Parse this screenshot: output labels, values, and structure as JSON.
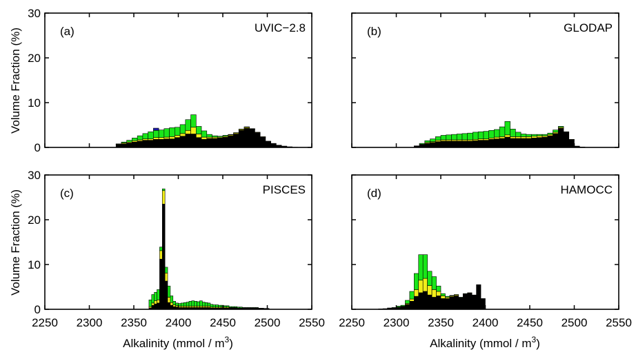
{
  "figure": {
    "ylabel": "Volume Fraction  (%)",
    "xlabel_main": "Alkalinity (mmol / m",
    "xlabel_sup": "3",
    "xlabel_end": ")"
  },
  "colors": {
    "green": "#19e619",
    "yellow": "#f2ee1a",
    "blue": "#1a1aa8",
    "black": "#000000"
  },
  "chart_data": [
    {
      "type": "bar",
      "id": "a",
      "panel_label": "(a)",
      "title": "UVIC−2.8",
      "xlim": [
        2250,
        2550
      ],
      "ylim": [
        0,
        30
      ],
      "xticks": [
        2250,
        2300,
        2350,
        2400,
        2450,
        2500,
        2550
      ],
      "yticks": [
        0,
        10,
        20,
        30
      ],
      "bin_width": 6,
      "bins": [
        [
          2330,
          0.6,
          0.1,
          0.1,
          0
        ],
        [
          2336,
          0.8,
          0.2,
          0.2,
          0
        ],
        [
          2342,
          1.0,
          0.2,
          0.4,
          0
        ],
        [
          2348,
          1.2,
          0.3,
          0.6,
          0
        ],
        [
          2354,
          1.4,
          0.3,
          0.9,
          0
        ],
        [
          2360,
          1.6,
          0.3,
          1.2,
          0
        ],
        [
          2366,
          1.6,
          0.3,
          1.6,
          0
        ],
        [
          2372,
          1.8,
          0.4,
          1.6,
          0.5
        ],
        [
          2378,
          1.8,
          0.4,
          1.7,
          0
        ],
        [
          2384,
          1.9,
          0.4,
          1.9,
          0
        ],
        [
          2390,
          1.9,
          0.5,
          2.0,
          0
        ],
        [
          2396,
          2.2,
          0.5,
          1.8,
          0
        ],
        [
          2402,
          2.5,
          0.6,
          2.0,
          0
        ],
        [
          2408,
          3.0,
          0.8,
          2.4,
          0
        ],
        [
          2414,
          3.0,
          1.5,
          2.8,
          0
        ],
        [
          2420,
          2.2,
          0.8,
          1.7,
          0
        ],
        [
          2426,
          1.8,
          0.5,
          1.4,
          0
        ],
        [
          2432,
          2.0,
          0.3,
          0.6,
          0
        ],
        [
          2438,
          2.0,
          0.3,
          0.3,
          0
        ],
        [
          2444,
          2.1,
          0.2,
          0.2,
          0
        ],
        [
          2450,
          2.3,
          0.2,
          0.2,
          0
        ],
        [
          2456,
          2.6,
          0.2,
          0.1,
          0
        ],
        [
          2462,
          3.0,
          0.2,
          0.1,
          0
        ],
        [
          2468,
          3.8,
          0.2,
          0.1,
          0
        ],
        [
          2474,
          4.3,
          0.2,
          0.1,
          0
        ],
        [
          2480,
          4.0,
          0.1,
          0.1,
          0
        ],
        [
          2486,
          3.3,
          0.1,
          0,
          0
        ],
        [
          2492,
          2.3,
          0.1,
          0,
          0
        ],
        [
          2498,
          1.4,
          0,
          0,
          0
        ],
        [
          2504,
          0.9,
          0,
          0,
          0
        ],
        [
          2510,
          0.5,
          0,
          0,
          0
        ],
        [
          2516,
          0.3,
          0,
          0,
          0
        ],
        [
          2522,
          0.15,
          0,
          0,
          0
        ],
        [
          2528,
          0.05,
          0,
          0,
          0
        ]
      ]
    },
    {
      "type": "bar",
      "id": "b",
      "panel_label": "(b)",
      "title": "GLODAP",
      "xlim": [
        2250,
        2550
      ],
      "ylim": [
        0,
        30
      ],
      "xticks": [
        2250,
        2300,
        2350,
        2400,
        2450,
        2500,
        2550
      ],
      "yticks": [
        0,
        10,
        20,
        30
      ],
      "bin_width": 6,
      "bins": [
        [
          2320,
          0.3,
          0,
          0.05,
          0
        ],
        [
          2326,
          0.6,
          0.1,
          0.2,
          0
        ],
        [
          2332,
          0.9,
          0.2,
          0.4,
          0
        ],
        [
          2338,
          1.1,
          0.2,
          0.6,
          0
        ],
        [
          2344,
          1.3,
          0.3,
          0.8,
          0
        ],
        [
          2350,
          1.4,
          0.3,
          1.0,
          0
        ],
        [
          2356,
          1.4,
          0.3,
          1.1,
          0
        ],
        [
          2362,
          1.4,
          0.3,
          1.2,
          0
        ],
        [
          2368,
          1.4,
          0.3,
          1.3,
          0
        ],
        [
          2374,
          1.4,
          0.3,
          1.4,
          0
        ],
        [
          2380,
          1.4,
          0.3,
          1.5,
          0
        ],
        [
          2386,
          1.5,
          0.3,
          1.6,
          0
        ],
        [
          2392,
          1.6,
          0.3,
          1.6,
          0
        ],
        [
          2398,
          1.6,
          0.3,
          1.7,
          0
        ],
        [
          2404,
          1.8,
          0.3,
          1.7,
          0
        ],
        [
          2410,
          1.9,
          0.4,
          1.7,
          0
        ],
        [
          2416,
          2.0,
          0.4,
          2.2,
          0
        ],
        [
          2422,
          2.3,
          0.5,
          3.0,
          0
        ],
        [
          2428,
          2.0,
          0.4,
          1.7,
          0
        ],
        [
          2434,
          2.0,
          0.4,
          1.0,
          0
        ],
        [
          2440,
          2.0,
          0.4,
          0.6,
          0
        ],
        [
          2446,
          2.0,
          0.4,
          0.5,
          0
        ],
        [
          2452,
          2.1,
          0.4,
          0.4,
          0
        ],
        [
          2458,
          2.2,
          0.4,
          0.3,
          0
        ],
        [
          2464,
          2.3,
          0.3,
          0.3,
          0
        ],
        [
          2470,
          2.6,
          0.3,
          0.3,
          0
        ],
        [
          2476,
          3.1,
          0.3,
          0.5,
          0
        ],
        [
          2482,
          4.3,
          0.2,
          0.2,
          0
        ],
        [
          2488,
          3.3,
          0.1,
          0.1,
          0
        ],
        [
          2494,
          1.7,
          0.1,
          0,
          0
        ],
        [
          2500,
          0.3,
          0,
          0,
          0
        ],
        [
          2506,
          0.1,
          0,
          0,
          0
        ]
      ]
    },
    {
      "type": "bar",
      "id": "c",
      "panel_label": "(c)",
      "title": "PISCES",
      "xlim": [
        2250,
        2550
      ],
      "ylim": [
        0,
        30
      ],
      "xticks": [
        2250,
        2300,
        2350,
        2400,
        2450,
        2500,
        2550
      ],
      "yticks": [
        0,
        10,
        20,
        30
      ],
      "bin_width": 3,
      "bins": [
        [
          2367,
          0.3,
          0.3,
          1.5,
          0
        ],
        [
          2370,
          0.9,
          0.5,
          1.9,
          0
        ],
        [
          2373,
          1.2,
          0.7,
          1.9,
          0
        ],
        [
          2376,
          1.4,
          0.7,
          2.3,
          0
        ],
        [
          2379,
          11.2,
          1.9,
          0.8,
          0
        ],
        [
          2382,
          23.5,
          3.0,
          0.4,
          0
        ],
        [
          2385,
          6.3,
          1.8,
          1.3,
          0
        ],
        [
          2388,
          1.5,
          1.2,
          2.5,
          0
        ],
        [
          2391,
          0.9,
          0.6,
          1.5,
          0
        ],
        [
          2394,
          0.6,
          0.4,
          0.8,
          0
        ],
        [
          2397,
          0.5,
          0.3,
          0.6,
          0
        ],
        [
          2400,
          0.4,
          0.3,
          0.6,
          0
        ],
        [
          2403,
          0.4,
          0.3,
          0.7,
          0
        ],
        [
          2406,
          0.4,
          0.3,
          0.8,
          0
        ],
        [
          2409,
          0.4,
          0.3,
          0.9,
          0
        ],
        [
          2412,
          0.4,
          0.3,
          1.1,
          0
        ],
        [
          2415,
          0.4,
          0.3,
          1.2,
          0
        ],
        [
          2418,
          0.4,
          0.3,
          1.1,
          0
        ],
        [
          2421,
          0.4,
          0.3,
          1.0,
          0
        ],
        [
          2424,
          0.4,
          0.3,
          1.2,
          0
        ],
        [
          2427,
          0.4,
          0.3,
          0.9,
          0
        ],
        [
          2430,
          0.4,
          0.3,
          0.8,
          0
        ],
        [
          2433,
          0.4,
          0.3,
          0.7,
          0
        ],
        [
          2436,
          0.3,
          0.2,
          0.6,
          0
        ],
        [
          2439,
          0.3,
          0.2,
          0.5,
          0
        ],
        [
          2442,
          0.3,
          0.2,
          0.5,
          0
        ],
        [
          2445,
          0.3,
          0.2,
          0.4,
          0
        ],
        [
          2448,
          0.3,
          0.2,
          0.4,
          0
        ],
        [
          2451,
          0.3,
          0.2,
          0.3,
          0
        ],
        [
          2454,
          0.3,
          0.2,
          0.3,
          0
        ],
        [
          2457,
          0.3,
          0.1,
          0.2,
          0
        ],
        [
          2460,
          0.3,
          0.1,
          0.2,
          0
        ],
        [
          2463,
          0.3,
          0.1,
          0.2,
          0
        ],
        [
          2466,
          0.2,
          0.1,
          0.2,
          0
        ],
        [
          2469,
          0.2,
          0.1,
          0.2,
          0
        ],
        [
          2472,
          0.2,
          0.1,
          0.1,
          0
        ],
        [
          2475,
          0.2,
          0.1,
          0.1,
          0
        ],
        [
          2478,
          0.2,
          0.1,
          0.1,
          0
        ],
        [
          2481,
          0.2,
          0.1,
          0.1,
          0
        ],
        [
          2484,
          0.2,
          0.1,
          0.1,
          0
        ],
        [
          2487,
          0.2,
          0.1,
          0.1,
          0
        ],
        [
          2490,
          0.15,
          0.05,
          0.05,
          0
        ],
        [
          2493,
          0.15,
          0.05,
          0.05,
          0
        ],
        [
          2496,
          0.1,
          0.05,
          0.05,
          0
        ],
        [
          2499,
          0.1,
          0.05,
          0.05,
          0
        ]
      ]
    },
    {
      "type": "bar",
      "id": "d",
      "panel_label": "(d)",
      "title": "HAMOCC",
      "xlim": [
        2250,
        2550
      ],
      "ylim": [
        0,
        30
      ],
      "xticks": [
        2250,
        2300,
        2350,
        2400,
        2450,
        2500,
        2550
      ],
      "yticks": [
        0,
        10,
        20,
        30
      ],
      "bin_width": 5,
      "bins": [
        [
          2280,
          0.1,
          0,
          0,
          0
        ],
        [
          2285,
          0.1,
          0,
          0.05,
          0
        ],
        [
          2290,
          0.2,
          0,
          0.1,
          0
        ],
        [
          2295,
          0.3,
          0,
          0.1,
          0
        ],
        [
          2300,
          0.4,
          0.1,
          0.2,
          0
        ],
        [
          2305,
          0.6,
          0.1,
          0.2,
          0
        ],
        [
          2310,
          1.1,
          0.2,
          0.7,
          0
        ],
        [
          2315,
          1.8,
          0.5,
          1.7,
          0
        ],
        [
          2320,
          2.9,
          1.5,
          3.6,
          0
        ],
        [
          2325,
          3.7,
          2.8,
          5.7,
          0
        ],
        [
          2330,
          4.0,
          2.9,
          5.3,
          0
        ],
        [
          2335,
          3.2,
          2.1,
          3.2,
          0
        ],
        [
          2340,
          2.7,
          1.7,
          2.9,
          0
        ],
        [
          2345,
          3.0,
          1.0,
          1.2,
          0
        ],
        [
          2350,
          2.4,
          0.6,
          0.5,
          0
        ],
        [
          2355,
          2.4,
          0.3,
          0.2,
          0
        ],
        [
          2360,
          2.8,
          0.2,
          0.1,
          0
        ],
        [
          2365,
          3.0,
          0.2,
          0.1,
          0
        ],
        [
          2370,
          2.5,
          0.1,
          0.1,
          0
        ],
        [
          2375,
          3.3,
          0.1,
          0.1,
          0
        ],
        [
          2380,
          3.6,
          0.1,
          0,
          0
        ],
        [
          2385,
          3.2,
          0,
          0,
          0
        ],
        [
          2390,
          5.5,
          0,
          0,
          0
        ],
        [
          2395,
          2.4,
          0,
          0,
          0
        ]
      ]
    }
  ]
}
